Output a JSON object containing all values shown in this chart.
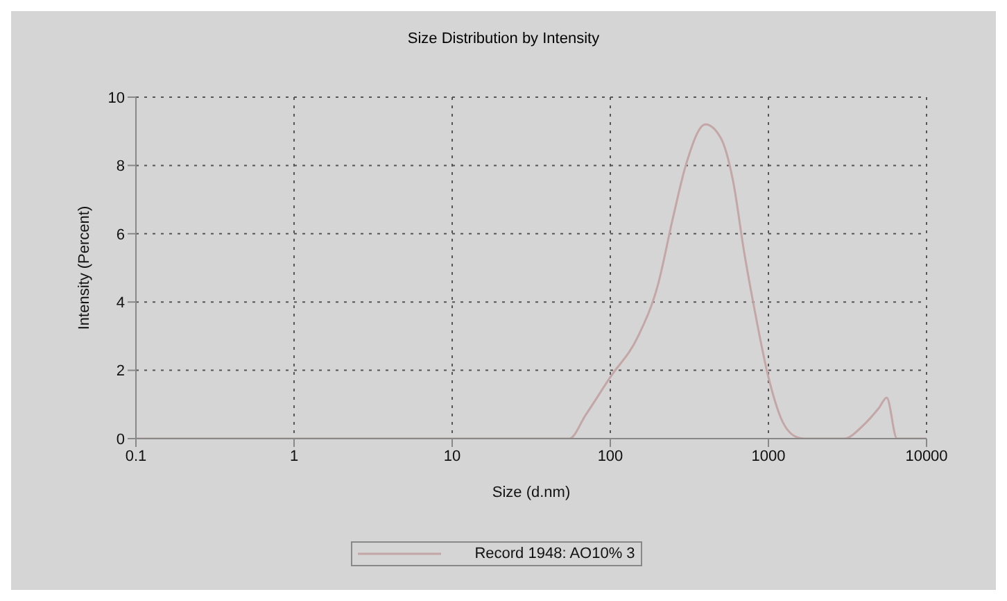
{
  "chart_data": {
    "type": "line",
    "title": "Size Distribution by Intensity",
    "xlabel": "Size (d.nm)",
    "ylabel": "Intensity (Percent)",
    "x": [
      0.1,
      1,
      10,
      30,
      55,
      70,
      100,
      150,
      200,
      250,
      300,
      400,
      500,
      600,
      700,
      800,
      1000,
      1200,
      1500,
      1700,
      3000,
      4000,
      5000,
      5600,
      6500,
      10000
    ],
    "series": [
      {
        "name": "Record 1948: AO10% 3",
        "color": "#c4a6a6",
        "values": [
          0,
          0,
          0,
          0,
          0,
          0.7,
          1.8,
          3,
          4.5,
          6.5,
          8,
          9.2,
          8.8,
          7.5,
          5.5,
          4,
          1.8,
          0.6,
          0.05,
          0,
          0,
          0.4,
          0.9,
          1.2,
          0,
          0
        ]
      }
    ],
    "log": "x",
    "xlim": [
      0.1,
      10000
    ],
    "xticks": [
      0.1,
      1,
      10,
      100,
      1000,
      10000
    ],
    "ylim": [
      0,
      10
    ],
    "yticks": [
      0,
      2,
      4,
      6,
      8,
      10
    ],
    "grid": true,
    "legend": "bottom",
    "marker": "none",
    "line_style": "solid"
  }
}
